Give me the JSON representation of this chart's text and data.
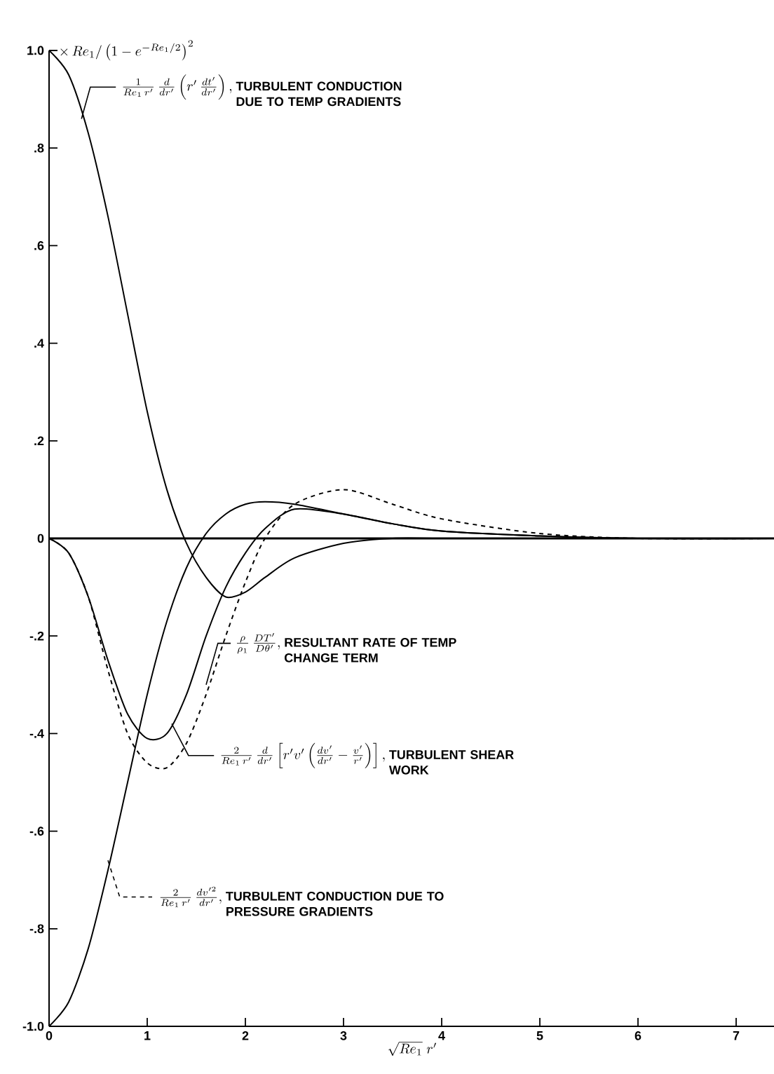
{
  "chart_data": {
    "type": "line",
    "xlabel": "\\sqrt{Re_1}\\; r'",
    "ylabel": "\\times\\, Re_1/\\left(1-e^{-Re_1/2}\\right)^2",
    "xlim": [
      0,
      7.4
    ],
    "ylim": [
      -1,
      1
    ],
    "xticks": [
      0,
      1,
      2,
      3,
      4,
      5,
      6,
      7
    ],
    "yticks": [
      {
        "value": -1,
        "label": "-1.0"
      },
      {
        "value": -0.8,
        "label": "-.8"
      },
      {
        "value": -0.6,
        "label": "-.6"
      },
      {
        "value": -0.4,
        "label": "-.4"
      },
      {
        "value": -0.2,
        "label": "-.2"
      },
      {
        "value": 0,
        "label": "0"
      },
      {
        "value": 0.2,
        "label": ".2"
      },
      {
        "value": 0.4,
        "label": ".4"
      },
      {
        "value": 0.6,
        "label": ".6"
      },
      {
        "value": 0.8,
        "label": ".8"
      },
      {
        "value": 1,
        "label": "1.0"
      }
    ],
    "annotations": [
      {
        "text": "\\frac{1}{Re_1\\, r'}\\,\\frac{d}{dr'}\\left(r'\\,\\frac{dt'}{dr'}\\right),",
        "x": 0.33,
        "y": 0.86
      },
      {
        "text": "\\frac{2}{Re_1\\, r'}\\,\\frac{dv'^2}{dr'},",
        "x": 0.6,
        "y": -0.66
      },
      {
        "text": "\\frac{2}{Re_1\\, r'}\\,\\frac{d}{dr'}\\left[r'v'\\left(\\frac{dv'}{dr'}-\\frac{v'}{r'}\\right)\\right],",
        "x": 1.25,
        "y": -0.38
      },
      {
        "text": "\\frac{\\rho}{\\rho_1}\\,\\frac{DT'}{D\\theta'},",
        "x": 1.6,
        "y": -0.3
      },
      "TURBULENT CONDUCTION DUE TO TEMP GRADIENTS",
      "TURBULENT CONDUCTION DUE TO PRESSURE GRADIENTS",
      "TURBULENT SHEAR WORK",
      "RESULTANT RATE OF TEMP CHANGE TERM"
    ],
    "ref_lines": [
      {
        "axis": "y",
        "value": 0,
        "color": "#000000"
      }
    ],
    "series": [
      {
        "color": "#000000",
        "line_style": "solid",
        "x": [
          0,
          0.2,
          0.4,
          0.6,
          0.8,
          1.0,
          1.2,
          1.4,
          1.6,
          1.8,
          2.0,
          2.2,
          2.5,
          3.0,
          3.5,
          4.0,
          5.0,
          6.0,
          7.4
        ],
        "values": [
          1.0,
          0.95,
          0.83,
          0.66,
          0.46,
          0.26,
          0.1,
          -0.01,
          -0.08,
          -0.12,
          -0.11,
          -0.08,
          -0.04,
          -0.01,
          0.0,
          0.0,
          0.0,
          0.0,
          0.0
        ]
      },
      {
        "color": "#000000",
        "line_style": "solid",
        "x": [
          0,
          0.2,
          0.4,
          0.6,
          0.8,
          1.0,
          1.2,
          1.4,
          1.6,
          1.8,
          2.0,
          2.2,
          2.5,
          3.0,
          3.5,
          4.0,
          5.0,
          6.0,
          7.4
        ],
        "values": [
          -1.0,
          -0.95,
          -0.84,
          -0.68,
          -0.5,
          -0.32,
          -0.17,
          -0.06,
          0.01,
          0.05,
          0.07,
          0.075,
          0.07,
          0.05,
          0.03,
          0.015,
          0.005,
          0.0,
          0.0
        ]
      },
      {
        "color": "#000000",
        "line_style": "solid",
        "x": [
          0,
          0.2,
          0.4,
          0.6,
          0.8,
          1.0,
          1.2,
          1.4,
          1.6,
          1.8,
          2.0,
          2.2,
          2.5,
          3.0,
          3.5,
          4.0,
          5.0,
          6.0,
          7.4
        ],
        "values": [
          0.0,
          -0.03,
          -0.12,
          -0.25,
          -0.36,
          -0.41,
          -0.4,
          -0.32,
          -0.2,
          -0.1,
          -0.03,
          0.02,
          0.06,
          0.05,
          0.03,
          0.015,
          0.005,
          0.0,
          0.0
        ]
      },
      {
        "color": "#000000",
        "line_style": "dashed",
        "x": [
          0,
          0.2,
          0.4,
          0.6,
          0.8,
          1.0,
          1.2,
          1.4,
          1.6,
          1.8,
          2.0,
          2.2,
          2.5,
          3.0,
          3.5,
          4.0,
          5.0,
          6.0,
          7.4
        ],
        "values": [
          0.0,
          -0.03,
          -0.12,
          -0.27,
          -0.4,
          -0.46,
          -0.47,
          -0.42,
          -0.32,
          -0.2,
          -0.09,
          0.0,
          0.07,
          0.1,
          0.07,
          0.04,
          0.01,
          0.0,
          0.0
        ]
      }
    ]
  }
}
